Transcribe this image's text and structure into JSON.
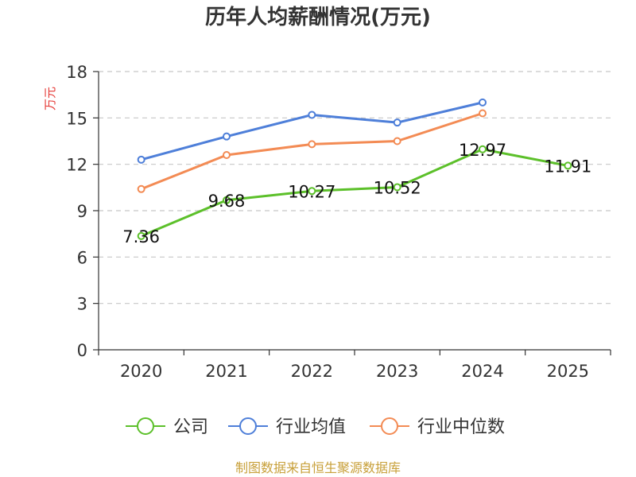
{
  "chart_data": {
    "type": "line",
    "title": "历年人均薪酬情况(万元)",
    "ylabel": "万元",
    "xlabel": "",
    "categories": [
      "2020",
      "2021",
      "2022",
      "2023",
      "2024",
      "2025"
    ],
    "ylim": [
      0,
      18
    ],
    "yticks": [
      0,
      3,
      6,
      9,
      12,
      15,
      18
    ],
    "grid": true,
    "legend_position": "bottom",
    "series": [
      {
        "name": "公司",
        "color": "#5cc02a",
        "values": [
          7.36,
          9.68,
          10.27,
          10.52,
          12.97,
          11.91
        ],
        "labels": [
          "7.36",
          "9.68",
          "10.27",
          "10.52",
          "12.97",
          "11.91"
        ]
      },
      {
        "name": "行业均值",
        "color": "#4e7fd9",
        "values": [
          12.3,
          13.8,
          15.2,
          14.7,
          16.0,
          null
        ]
      },
      {
        "name": "行业中位数",
        "color": "#f38b54",
        "values": [
          10.4,
          12.6,
          13.3,
          13.5,
          15.3,
          null
        ]
      }
    ],
    "source": "制图数据来自恒生聚源数据库"
  }
}
